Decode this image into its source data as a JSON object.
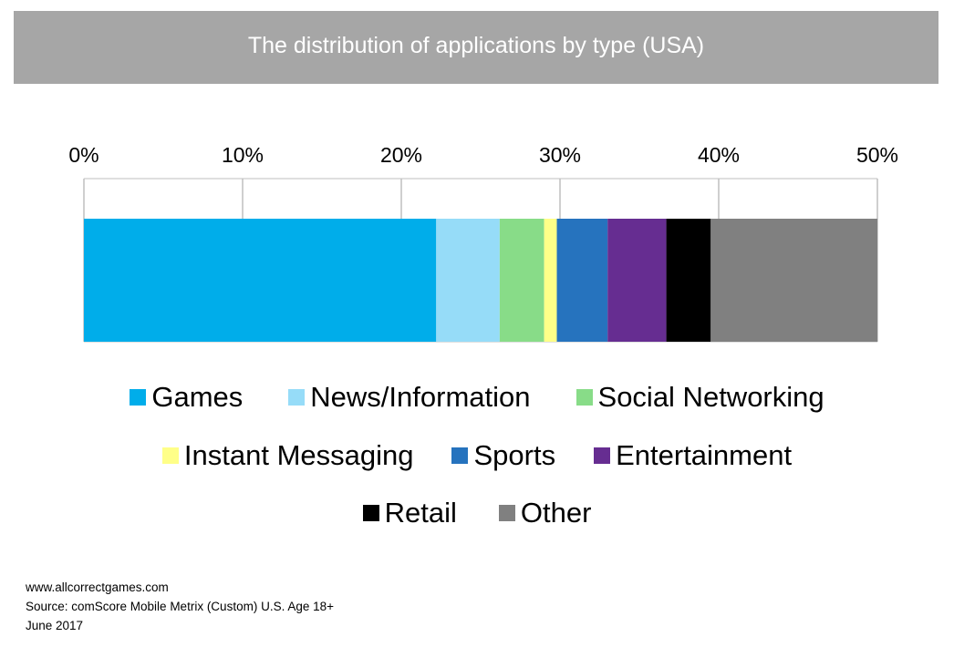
{
  "header": {
    "title": "The distribution of applications by type (USA)"
  },
  "chart_data": {
    "type": "bar",
    "orientation": "horizontal",
    "stacked": true,
    "title": "The distribution of applications by type (USA)",
    "xlabel": "",
    "ylabel": "",
    "xlim": [
      0,
      50
    ],
    "x_ticks": [
      0,
      10,
      20,
      30,
      40,
      50
    ],
    "x_tick_labels": [
      "0%",
      "10%",
      "20%",
      "30%",
      "40%",
      "50%"
    ],
    "grid": true,
    "legend_position": "bottom",
    "categories": [
      ""
    ],
    "series": [
      {
        "name": "Games",
        "values": [
          22.2
        ],
        "color": "#00adea"
      },
      {
        "name": "News/Information",
        "values": [
          4.0
        ],
        "color": "#96dcf8"
      },
      {
        "name": "Social Networking",
        "values": [
          2.8
        ],
        "color": "#88dc88"
      },
      {
        "name": "Instant Messaging",
        "values": [
          0.8
        ],
        "color": "#ffff88"
      },
      {
        "name": "Sports",
        "values": [
          3.2
        ],
        "color": "#2673be"
      },
      {
        "name": "Entertainment",
        "values": [
          3.7
        ],
        "color": "#662d91"
      },
      {
        "name": "Retail",
        "values": [
          2.8
        ],
        "color": "#000000"
      },
      {
        "name": "Other",
        "values": [
          10.5
        ],
        "color": "#808080"
      }
    ]
  },
  "legend": {
    "rows": [
      [
        "Games",
        "News/Information",
        "Social Networking"
      ],
      [
        "Instant Messaging",
        "Sports",
        "Entertainment"
      ],
      [
        "Retail",
        "Other"
      ]
    ]
  },
  "footer": {
    "website": "www.allcorrectgames.com",
    "source": "Source: comScore Mobile Metrix (Custom) U.S. Age 18+",
    "date": "June 2017"
  }
}
